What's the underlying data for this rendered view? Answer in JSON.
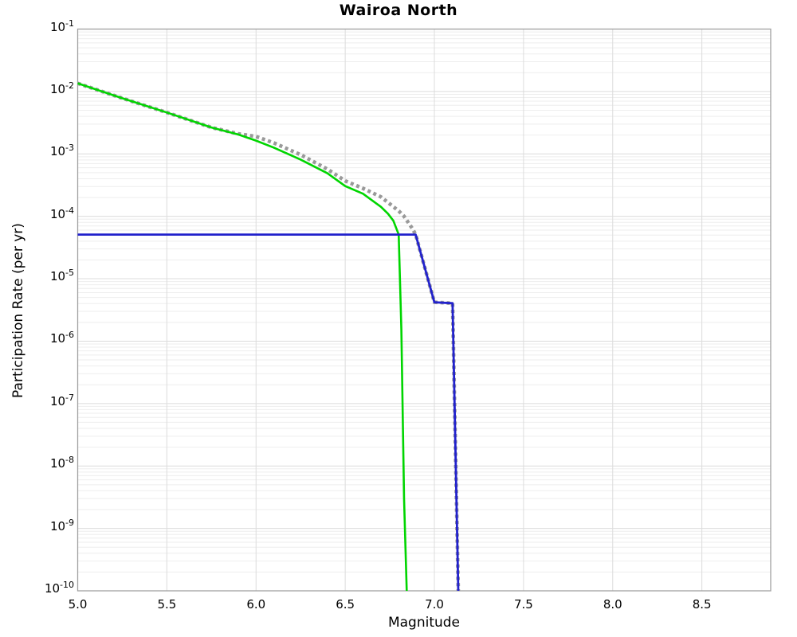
{
  "chart_data": {
    "type": "line",
    "title": "Wairoa North",
    "xlabel": "Magnitude",
    "ylabel": "Participation Rate (per yr)",
    "xlim": [
      5.0,
      8.886
    ],
    "ylim": [
      1e-10,
      0.1
    ],
    "y_scale": "log",
    "grid": true,
    "legend": "none",
    "x_ticks": [
      5.0,
      5.5,
      6.0,
      6.5,
      7.0,
      7.5,
      8.0,
      8.5
    ],
    "x_tick_labels": [
      "5.0",
      "5.5",
      "6.0",
      "6.5",
      "7.0",
      "7.5",
      "8.0",
      "8.5"
    ],
    "y_tick_base": "10",
    "y_tick_exponents": [
      "-1",
      "-2",
      "-3",
      "-4",
      "-5",
      "-6",
      "-7",
      "-8",
      "-9",
      "-10"
    ],
    "series": [
      {
        "name": "gray-dotted-curve",
        "color": "#999999",
        "style": "dotted",
        "width": 4.6,
        "points": [
          [
            5.0,
            0.0135
          ],
          [
            5.25,
            0.0078
          ],
          [
            5.5,
            0.0046
          ],
          [
            5.75,
            0.00265
          ],
          [
            5.9,
            0.0021
          ],
          [
            6.0,
            0.0019
          ],
          [
            6.1,
            0.0015
          ],
          [
            6.25,
            0.00097
          ],
          [
            6.4,
            0.00057
          ],
          [
            6.5,
            0.00037
          ],
          [
            6.6,
            0.00028
          ],
          [
            6.7,
            0.000205
          ],
          [
            6.8,
            0.000122
          ],
          [
            6.83,
            0.0001
          ],
          [
            6.876,
            6.4e-05
          ],
          [
            6.895,
            5.1e-05
          ],
          [
            7.0,
            4.2e-06
          ],
          [
            7.102,
            4.05e-06
          ],
          [
            7.134,
            1e-10
          ]
        ]
      },
      {
        "name": "green-solid-curve",
        "color": "#00d500",
        "style": "solid",
        "width": 2.6,
        "points": [
          [
            5.0,
            0.0135
          ],
          [
            5.25,
            0.0078
          ],
          [
            5.5,
            0.0046
          ],
          [
            5.75,
            0.00265
          ],
          [
            5.9,
            0.00205
          ],
          [
            6.0,
            0.00163
          ],
          [
            6.1,
            0.00126
          ],
          [
            6.25,
            0.00081
          ],
          [
            6.4,
            0.00049
          ],
          [
            6.5,
            0.000305
          ],
          [
            6.6,
            0.00023
          ],
          [
            6.7,
            0.000142
          ],
          [
            6.74,
            0.00011
          ],
          [
            6.77,
            8.5e-05
          ],
          [
            6.8,
            5.1e-05
          ],
          [
            6.815,
            1.5e-06
          ],
          [
            6.83,
            3e-09
          ],
          [
            6.845,
            1e-10
          ]
        ]
      },
      {
        "name": "blue-solid-curve",
        "color": "#2222cc",
        "style": "solid",
        "width": 2.8,
        "points": [
          [
            5.0,
            5.1e-05
          ],
          [
            6.895,
            5.1e-05
          ],
          [
            7.0,
            4.2e-06
          ],
          [
            7.102,
            4.05e-06
          ],
          [
            7.134,
            1e-10
          ]
        ]
      }
    ],
    "grid_colors": {
      "major": "#dcdcdc",
      "minor": "#eeeeee",
      "vertical": "#dcdcdc",
      "border": "#a0a0a0"
    }
  }
}
